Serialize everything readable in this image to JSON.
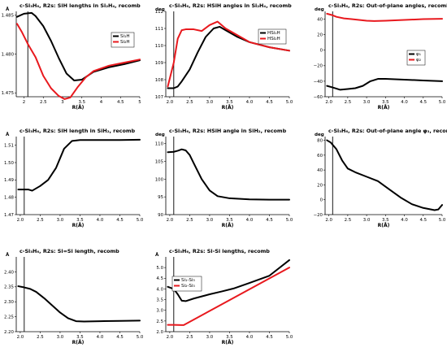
{
  "chart_data": [
    {
      "type": "line",
      "title": "c-Si₃H₆, R2s: SiH lengths in Si₂H₄, recomb",
      "xlabel": "R(Å)",
      "ylabel": "Å",
      "xlim": [
        1.8,
        5.0
      ],
      "ylim": [
        1.4745,
        1.4855
      ],
      "xticks": [
        2,
        2.5,
        3,
        3.5,
        4,
        4.5,
        5
      ],
      "xtick_labels": [
        "2",
        "2.5",
        "3",
        "3.5",
        "4",
        "4.5",
        "5"
      ],
      "yticks": [
        1.475,
        1.48,
        1.485
      ],
      "ytick_labels": [
        "1.475",
        "1.480",
        "1.485"
      ],
      "vline": 2.1,
      "legend": "top-right",
      "series": [
        {
          "name": "Si₁H",
          "color": "#000000",
          "x": [
            1.82,
            2.0,
            2.2,
            2.3,
            2.5,
            2.7,
            2.9,
            3.1,
            3.3,
            3.5,
            3.8,
            4.2,
            4.6,
            5.0
          ],
          "y": [
            1.4848,
            1.4852,
            1.4853,
            1.4849,
            1.4836,
            1.4817,
            1.4795,
            1.4775,
            1.4766,
            1.4767,
            1.4777,
            1.4783,
            1.4787,
            1.4792
          ]
        },
        {
          "name": "Si₂H",
          "color": "#e8191e",
          "x": [
            1.82,
            1.95,
            2.1,
            2.3,
            2.5,
            2.7,
            2.9,
            3.05,
            3.2,
            3.4,
            3.6,
            3.8,
            4.2,
            4.6,
            5.0
          ],
          "y": [
            1.4839,
            1.4828,
            1.4813,
            1.4796,
            1.4772,
            1.4756,
            1.4746,
            1.4742,
            1.4744,
            1.4758,
            1.477,
            1.4778,
            1.4785,
            1.4789,
            1.4793
          ]
        }
      ]
    },
    {
      "type": "line",
      "title": "c-Si₃H₆, R2s: HSiH angles in Si₂H₄, recomb",
      "xlabel": "R(Å)",
      "ylabel": "deg",
      "xlim": [
        1.9,
        5.0
      ],
      "ylim": [
        107,
        112
      ],
      "xticks": [
        2.0,
        2.5,
        3.0,
        3.5,
        4.0,
        4.5,
        5.0
      ],
      "xtick_labels": [
        "2.0",
        "2.5",
        "3.0",
        "3.5",
        "4.0",
        "4.5",
        "5.0"
      ],
      "yticks": [
        107,
        108,
        109,
        110,
        111,
        112
      ],
      "ytick_labels": [
        "107",
        "108",
        "109",
        "110",
        "111",
        "112"
      ],
      "vline": 2.1,
      "legend": "top-right",
      "series": [
        {
          "name": "HSi₁H",
          "color": "#000000",
          "x": [
            1.95,
            2.1,
            2.2,
            2.3,
            2.5,
            2.7,
            2.9,
            3.1,
            3.25,
            3.4,
            3.7,
            4.0,
            4.5,
            5.0
          ],
          "y": [
            107.5,
            107.5,
            107.6,
            107.9,
            108.6,
            109.6,
            110.5,
            111.0,
            111.1,
            110.9,
            110.5,
            110.2,
            109.9,
            109.7
          ]
        },
        {
          "name": "HSi₂H",
          "color": "#e8191e",
          "x": [
            1.95,
            2.1,
            2.2,
            2.3,
            2.4,
            2.6,
            2.8,
            3.0,
            3.2,
            3.4,
            3.7,
            4.0,
            4.5,
            5.0
          ],
          "y": [
            107.6,
            109.0,
            110.4,
            110.9,
            110.95,
            110.95,
            110.85,
            111.2,
            111.4,
            111.0,
            110.6,
            110.2,
            109.9,
            109.7
          ]
        }
      ]
    },
    {
      "type": "line",
      "title": "c-Si₃H₆, R2s: Out-of-plane angles, recomb",
      "xlabel": "R(Å)",
      "ylabel": "deg",
      "xlim": [
        1.9,
        5.0
      ],
      "ylim": [
        -60,
        50
      ],
      "xticks": [
        2.0,
        2.5,
        3.0,
        3.5,
        4.0,
        4.5,
        5.0
      ],
      "xtick_labels": [
        "2.0",
        "2.5",
        "3.0",
        "3.5",
        "4.0",
        "4.5",
        "5.0"
      ],
      "yticks": [
        -60,
        -40,
        -20,
        0,
        20,
        40
      ],
      "ytick_labels": [
        "−60",
        "−40",
        "−20",
        "0",
        "20",
        "40"
      ],
      "vline": 2.1,
      "legend": "center-right",
      "series": [
        {
          "name": "φ₁",
          "color": "#000000",
          "x": [
            1.95,
            2.1,
            2.3,
            2.5,
            2.7,
            2.9,
            3.1,
            3.3,
            3.5,
            4.0,
            4.5,
            5.0
          ],
          "y": [
            -46,
            -48,
            -51,
            -50,
            -49,
            -46,
            -40,
            -37,
            -37,
            -38,
            -39,
            -40
          ]
        },
        {
          "name": "φ₂",
          "color": "#e8191e",
          "x": [
            1.95,
            2.1,
            2.2,
            2.4,
            2.6,
            2.8,
            3.0,
            3.2,
            3.5,
            4.0,
            4.5,
            5.0
          ],
          "y": [
            47,
            45,
            43,
            41,
            40,
            39,
            38,
            37.5,
            38,
            39,
            40,
            40.5
          ]
        }
      ]
    },
    {
      "type": "line",
      "title": "c-Si₃H₆, R2s: SiH length in SiH₂, recomb",
      "xlabel": "R(Å)",
      "ylabel": "Å",
      "xlim": [
        1.9,
        5.0
      ],
      "ylim": [
        1.47,
        1.515
      ],
      "xticks": [
        2.0,
        2.5,
        3.0,
        3.5,
        4.0,
        4.5,
        5.0
      ],
      "xtick_labels": [
        "2.0",
        "2.5",
        "3.0",
        "3.5",
        "4.0",
        "4.5",
        "5.0"
      ],
      "yticks": [
        1.47,
        1.48,
        1.49,
        1.5,
        1.51
      ],
      "ytick_labels": [
        "1.47",
        "1.48",
        "1.49",
        "1.50",
        "1.51"
      ],
      "vline": 2.1,
      "series": [
        {
          "name": "",
          "color": "#000000",
          "x": [
            1.95,
            2.1,
            2.2,
            2.3,
            2.5,
            2.7,
            2.9,
            3.1,
            3.3,
            3.5,
            4.0,
            4.5,
            5.0
          ],
          "y": [
            1.4845,
            1.4845,
            1.4845,
            1.4838,
            1.4865,
            1.49,
            1.497,
            1.508,
            1.5125,
            1.513,
            1.513,
            1.513,
            1.5132
          ]
        }
      ]
    },
    {
      "type": "line",
      "title": "c-Si₃H₆, R2s: HSiH angle in SiH₂, recomb",
      "xlabel": "R(Å)",
      "ylabel": "deg",
      "xlim": [
        1.9,
        5.0
      ],
      "ylim": [
        90,
        112
      ],
      "xticks": [
        2.0,
        2.5,
        3.0,
        3.5,
        4.0,
        4.5,
        5.0
      ],
      "xtick_labels": [
        "2.0",
        "2.5",
        "3.0",
        "3.5",
        "4.0",
        "4.5",
        "5.0"
      ],
      "yticks": [
        90,
        95,
        100,
        105,
        110
      ],
      "ytick_labels": [
        "90",
        "95",
        "100",
        "105",
        "110"
      ],
      "vline": 2.1,
      "series": [
        {
          "name": "",
          "color": "#000000",
          "x": [
            1.95,
            2.1,
            2.2,
            2.3,
            2.4,
            2.5,
            2.6,
            2.8,
            3.0,
            3.2,
            3.5,
            4.0,
            4.5,
            5.0
          ],
          "y": [
            107.6,
            107.7,
            108.0,
            108.4,
            108.1,
            106.8,
            104.5,
            100.0,
            96.8,
            95.2,
            94.6,
            94.3,
            94.2,
            94.2
          ]
        }
      ]
    },
    {
      "type": "line",
      "title": "c-Si₃H₆, R2s: Out-of-plane angle φ₃, recomb",
      "xlabel": "R(Å)",
      "ylabel": "deg",
      "xlim": [
        1.9,
        5.0
      ],
      "ylim": [
        -20,
        85
      ],
      "xticks": [
        2.0,
        2.5,
        3.0,
        3.5,
        4.0,
        4.5,
        5.0
      ],
      "xtick_labels": [
        "2.0",
        "2.5",
        "3.0",
        "3.5",
        "4.0",
        "4.5",
        "5.0"
      ],
      "yticks": [
        -20,
        0,
        20,
        40,
        60,
        80
      ],
      "ytick_labels": [
        "−20",
        "0",
        "20",
        "40",
        "60",
        "80"
      ],
      "vline": 2.1,
      "series": [
        {
          "name": "",
          "color": "#000000",
          "x": [
            1.95,
            2.05,
            2.2,
            2.35,
            2.5,
            2.7,
            3.0,
            3.3,
            3.6,
            3.9,
            4.2,
            4.5,
            4.8,
            4.9,
            5.0
          ],
          "y": [
            80,
            77,
            68,
            53,
            42,
            37,
            31,
            25,
            14,
            3,
            -6,
            -11,
            -14,
            -13,
            -7
          ]
        }
      ]
    },
    {
      "type": "line",
      "title": "c-Si₃H₆, R2s: Si=Si length, recomb",
      "xlabel": "R(Å)",
      "ylabel": "Å",
      "xlim": [
        1.9,
        5.0
      ],
      "ylim": [
        2.2,
        2.45
      ],
      "xticks": [
        2.0,
        2.5,
        3.0,
        3.5,
        4.0,
        4.5,
        5.0
      ],
      "xtick_labels": [
        "2.0",
        "2.5",
        "3.0",
        "3.5",
        "4.0",
        "4.5",
        "5.0"
      ],
      "yticks": [
        2.2,
        2.25,
        2.3,
        2.35,
        2.4
      ],
      "ytick_labels": [
        "2.20",
        "2.25",
        "2.30",
        "2.35",
        "2.40"
      ],
      "vline": 2.1,
      "series": [
        {
          "name": "",
          "color": "#000000",
          "x": [
            1.95,
            2.1,
            2.25,
            2.4,
            2.6,
            2.8,
            3.0,
            3.2,
            3.4,
            3.6,
            4.0,
            4.5,
            5.0
          ],
          "y": [
            2.352,
            2.348,
            2.343,
            2.333,
            2.312,
            2.288,
            2.264,
            2.245,
            2.235,
            2.234,
            2.235,
            2.236,
            2.237
          ]
        }
      ]
    },
    {
      "type": "line",
      "title": "c-Si₃H₆, R2s: Si-Si lengths, recomb",
      "xlabel": "R(Å)",
      "ylabel": "Å",
      "xlim": [
        1.9,
        5.0
      ],
      "ylim": [
        2.0,
        5.5
      ],
      "xticks": [
        2.0,
        2.5,
        3.0,
        3.5,
        4.0,
        4.5,
        5.0
      ],
      "xtick_labels": [
        "2.0",
        "2.5",
        "3.0",
        "3.5",
        "4.0",
        "4.5",
        "5.0"
      ],
      "yticks": [
        2.0,
        2.5,
        3.0,
        3.5,
        4.0,
        4.5,
        5.0
      ],
      "ytick_labels": [
        "2.0",
        "2.5",
        "3.0",
        "3.5",
        "4.0",
        "4.5",
        "5.0"
      ],
      "vline": 2.1,
      "legend": "top-left",
      "series": [
        {
          "name": "Si₁-Si₃",
          "color": "#000000",
          "x": [
            1.95,
            2.1,
            2.2,
            2.3,
            2.4,
            2.6,
            2.8,
            3.0,
            3.3,
            3.6,
            4.0,
            4.5,
            5.0
          ],
          "y": [
            4.1,
            4.0,
            3.75,
            3.45,
            3.43,
            3.55,
            3.65,
            3.75,
            3.88,
            4.02,
            4.28,
            4.62,
            5.35
          ]
        },
        {
          "name": "Si₂-Si₃",
          "color": "#e8191e",
          "x": [
            1.95,
            2.1,
            2.3,
            2.35,
            5.0
          ],
          "y": [
            2.32,
            2.32,
            2.31,
            2.31,
            5.0
          ]
        }
      ]
    }
  ]
}
